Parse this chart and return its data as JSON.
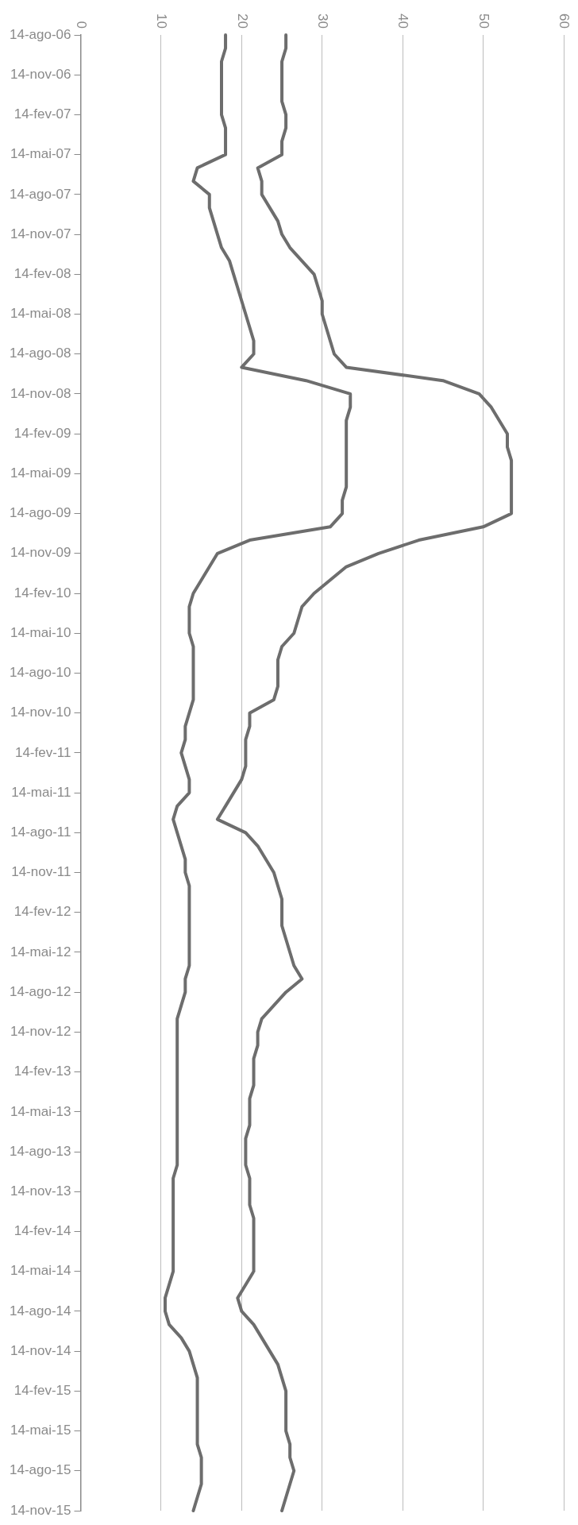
{
  "chart_data": {
    "type": "line",
    "orientation": "horizontal",
    "grid": "x",
    "marker": "none",
    "line_style": "solid",
    "legend": false,
    "categories": [
      "14-ago-06",
      null,
      null,
      "14-nov-06",
      null,
      null,
      "14-fev-07",
      null,
      null,
      "14-mai-07",
      null,
      null,
      "14-ago-07",
      null,
      null,
      "14-nov-07",
      null,
      null,
      "14-fev-08",
      null,
      null,
      "14-mai-08",
      null,
      null,
      "14-ago-08",
      null,
      null,
      "14-nov-08",
      null,
      null,
      "14-fev-09",
      null,
      null,
      "14-mai-09",
      null,
      null,
      "14-ago-09",
      null,
      null,
      "14-nov-09",
      null,
      null,
      "14-fev-10",
      null,
      null,
      "14-mai-10",
      null,
      null,
      "14-ago-10",
      null,
      null,
      "14-nov-10",
      null,
      null,
      "14-fev-11",
      null,
      null,
      "14-mai-11",
      null,
      null,
      "14-ago-11",
      null,
      null,
      "14-nov-11",
      null,
      null,
      "14-fev-12",
      null,
      null,
      "14-mai-12",
      null,
      null,
      "14-ago-12",
      null,
      null,
      "14-nov-12",
      null,
      null,
      "14-fev-13",
      null,
      null,
      "14-mai-13",
      null,
      null,
      "14-ago-13",
      null,
      null,
      "14-nov-13",
      null,
      null,
      "14-fev-14",
      null,
      null,
      "14-mai-14",
      null,
      null,
      "14-ago-14",
      null,
      null,
      "14-nov-14",
      null,
      null,
      "14-fev-15",
      null,
      null,
      "14-mai-15",
      null,
      null,
      "14-ago-15",
      null,
      null,
      "14-nov-15"
    ],
    "xlim": [
      0,
      60
    ],
    "xticks": [
      0,
      10,
      20,
      30,
      40,
      50,
      60
    ],
    "series": [
      {
        "color": "#6d6d6d",
        "values": [
          18,
          18,
          17.5,
          17.5,
          17.5,
          17.5,
          17.5,
          18,
          18,
          18,
          14.5,
          14,
          16,
          16,
          16.5,
          17,
          17.5,
          18.5,
          19,
          19.5,
          20,
          20.5,
          21,
          21.5,
          21.5,
          20,
          28,
          33.5,
          33.5,
          33,
          33,
          33,
          33,
          33,
          33,
          32.5,
          32.5,
          31,
          21,
          17,
          16,
          15,
          14,
          13.5,
          13.5,
          13.5,
          14,
          14,
          14,
          14,
          14,
          13.5,
          13,
          13,
          12.5,
          13,
          13.5,
          13.5,
          12,
          11.5,
          12,
          12.5,
          13,
          13,
          13.5,
          13.5,
          13.5,
          13.5,
          13.5,
          13.5,
          13.5,
          13,
          13,
          12.5,
          12,
          12,
          12,
          12,
          12,
          12,
          12,
          12,
          12,
          12,
          12,
          12,
          11.5,
          11.5,
          11.5,
          11.5,
          11.5,
          11.5,
          11.5,
          11.5,
          11,
          10.5,
          10.5,
          11,
          12.5,
          13.5,
          14,
          14.5,
          14.5,
          14.5,
          14.5,
          14.5,
          14.5,
          15,
          15,
          15,
          14.5,
          14
        ]
      },
      {
        "color": "#6d6d6d",
        "values": [
          25.5,
          25.5,
          25,
          25,
          25,
          25,
          25.5,
          25.5,
          25,
          25,
          22,
          22.5,
          22.5,
          23.5,
          24.5,
          25,
          26,
          27.5,
          29,
          29.5,
          30,
          30,
          30.5,
          31,
          31.5,
          33,
          45,
          49.5,
          51,
          52,
          53,
          53,
          53.5,
          53.5,
          53.5,
          53.5,
          53.5,
          50,
          42,
          37,
          33,
          31,
          29,
          27.5,
          27,
          26.5,
          25,
          24.5,
          24.5,
          24.5,
          24,
          21,
          21,
          20.5,
          20.5,
          20.5,
          20,
          19,
          18,
          17,
          20.5,
          22,
          23,
          24,
          24.5,
          25,
          25,
          25,
          25.5,
          26,
          26.5,
          27.5,
          25.5,
          24,
          22.5,
          22,
          22,
          21.5,
          21.5,
          21.5,
          21,
          21,
          21,
          20.5,
          20.5,
          20.5,
          21,
          21,
          21,
          21.5,
          21.5,
          21.5,
          21.5,
          21.5,
          20.5,
          19.5,
          20,
          21.5,
          22.5,
          23.5,
          24.5,
          25,
          25.5,
          25.5,
          25.5,
          25.5,
          26,
          26,
          26.5,
          26,
          25.5,
          25
        ]
      }
    ]
  }
}
